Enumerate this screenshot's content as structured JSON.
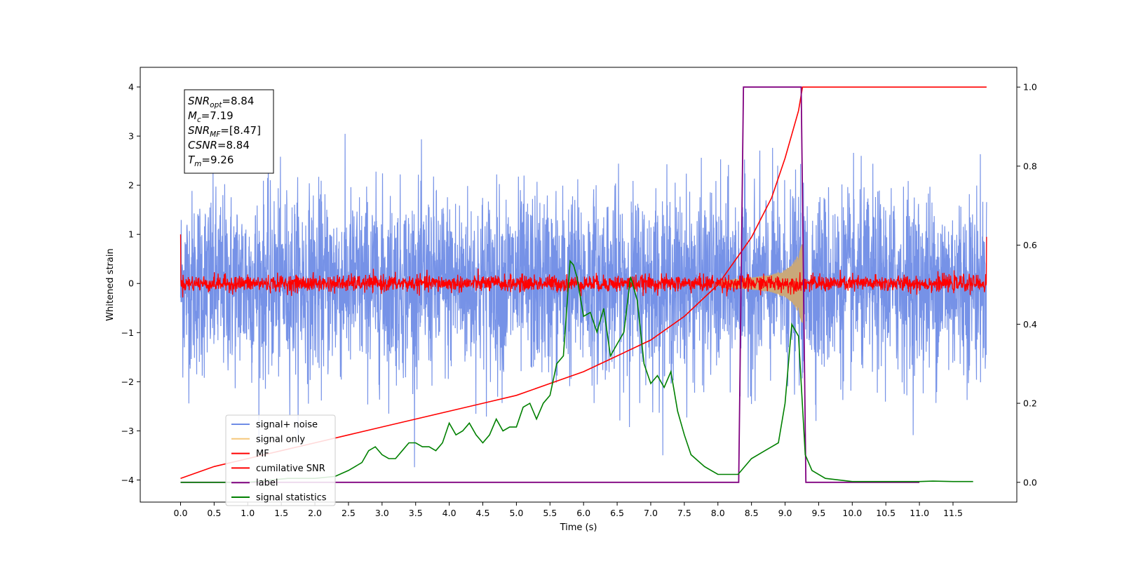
{
  "chart_data": {
    "type": "line",
    "xlabel": "Time (s)",
    "ylabel": "Whitened strain",
    "xlim": [
      -0.6,
      12.45
    ],
    "ylim_left": [
      -4.45,
      4.4
    ],
    "ylim_right": [
      -0.05,
      1.05
    ],
    "x_ticks": [
      "0.0",
      "0.5",
      "1.0",
      "1.5",
      "2.0",
      "2.5",
      "3.0",
      "3.5",
      "4.0",
      "4.5",
      "5.0",
      "5.5",
      "6.0",
      "6.5",
      "7.0",
      "7.5",
      "8.0",
      "8.5",
      "9.0",
      "9.5",
      "10.0",
      "10.5",
      "11.0",
      "11.5"
    ],
    "y_ticks_left": [
      "4",
      "3",
      "2",
      "1",
      "0",
      "−1",
      "−2",
      "−3",
      "−4"
    ],
    "y_ticks_right": [
      "1.0",
      "0.8",
      "0.6",
      "0.4",
      "0.2",
      "0.0"
    ],
    "annotation": [
      {
        "main": "SNR",
        "sub": "opt",
        "rest": "=8.84"
      },
      {
        "main": "M",
        "sub": "c",
        "rest": "=7.19"
      },
      {
        "main": "SNR",
        "sub": "MF",
        "rest": "=[8.47]"
      },
      {
        "main": "CSNR",
        "sub": "",
        "rest": "=8.84"
      },
      {
        "main": "T",
        "sub": "m",
        "rest": "=9.26"
      }
    ],
    "legend": [
      {
        "label": "signal+ noise",
        "color": "#6f8ce6"
      },
      {
        "label": "signal only",
        "color": "#f5c77a"
      },
      {
        "label": "MF",
        "color": "#ff0000"
      },
      {
        "label": "cumilative SNR",
        "color": "#ff0000"
      },
      {
        "label": "label",
        "color": "#800080"
      },
      {
        "label": "signal statistics",
        "color": "#008000"
      }
    ],
    "legend_position": "lower-left",
    "series": [
      {
        "name": "signal+ noise",
        "axis": "left",
        "description": "whitened noisy strain, amplitude ~ ±2 to ±4",
        "x_range": [
          0.0,
          12.0
        ],
        "typical_amplitude": 1.5,
        "max": 3.97,
        "min": -4.1
      },
      {
        "name": "signal only",
        "axis": "left",
        "description": "chirp growing toward merger",
        "x": [
          8.0,
          8.5,
          8.8,
          9.0,
          9.1,
          9.2,
          9.26
        ],
        "y_amplitude": [
          0.05,
          0.12,
          0.18,
          0.28,
          0.38,
          0.6,
          0.85
        ]
      },
      {
        "name": "MF",
        "axis": "left",
        "description": "matched filter output, noisy around 0 with amplitude ~0.15",
        "x_range": [
          0.0,
          12.0
        ],
        "typical_amplitude": 0.12,
        "edge_values": [
          1.0,
          0.95
        ]
      },
      {
        "name": "cumilative SNR",
        "axis": "right",
        "x": [
          0.0,
          0.5,
          1.0,
          1.5,
          2.0,
          2.5,
          3.0,
          3.5,
          4.0,
          4.5,
          5.0,
          5.5,
          6.0,
          6.5,
          7.0,
          7.5,
          8.0,
          8.5,
          8.8,
          9.0,
          9.1,
          9.2,
          9.26,
          12.0
        ],
        "values": [
          0.01,
          0.04,
          0.06,
          0.08,
          0.1,
          0.12,
          0.14,
          0.16,
          0.18,
          0.2,
          0.22,
          0.25,
          0.28,
          0.32,
          0.36,
          0.42,
          0.5,
          0.62,
          0.72,
          0.82,
          0.88,
          0.94,
          1.0,
          1.0
        ]
      },
      {
        "name": "label",
        "axis": "right",
        "x": [
          0.0,
          8.31,
          8.38,
          9.24,
          9.31,
          11.0
        ],
        "values": [
          0.0,
          0.0,
          1.0,
          1.0,
          0.0,
          0.0
        ]
      },
      {
        "name": "signal statistics",
        "axis": "right",
        "x": [
          0.0,
          1.0,
          1.6,
          2.0,
          2.3,
          2.5,
          2.7,
          2.8,
          2.9,
          3.0,
          3.1,
          3.2,
          3.3,
          3.4,
          3.5,
          3.6,
          3.7,
          3.8,
          3.9,
          4.0,
          4.1,
          4.2,
          4.3,
          4.4,
          4.5,
          4.6,
          4.7,
          4.8,
          4.9,
          5.0,
          5.1,
          5.2,
          5.3,
          5.4,
          5.5,
          5.6,
          5.7,
          5.8,
          5.85,
          5.9,
          6.0,
          6.1,
          6.2,
          6.3,
          6.4,
          6.5,
          6.6,
          6.7,
          6.8,
          6.9,
          7.0,
          7.1,
          7.2,
          7.3,
          7.4,
          7.5,
          7.6,
          7.8,
          8.0,
          8.3,
          8.5,
          8.7,
          8.9,
          9.0,
          9.1,
          9.2,
          9.3,
          9.4,
          9.6,
          10.0,
          11.0,
          11.2,
          11.5,
          11.8
        ],
        "values": [
          0.0,
          0.0,
          0.01,
          0.01,
          0.015,
          0.03,
          0.05,
          0.08,
          0.09,
          0.07,
          0.06,
          0.06,
          0.08,
          0.1,
          0.1,
          0.09,
          0.09,
          0.08,
          0.1,
          0.15,
          0.12,
          0.13,
          0.15,
          0.12,
          0.1,
          0.12,
          0.16,
          0.13,
          0.14,
          0.14,
          0.19,
          0.2,
          0.16,
          0.2,
          0.22,
          0.3,
          0.32,
          0.56,
          0.55,
          0.52,
          0.42,
          0.43,
          0.38,
          0.44,
          0.32,
          0.35,
          0.38,
          0.52,
          0.46,
          0.3,
          0.25,
          0.27,
          0.24,
          0.28,
          0.18,
          0.12,
          0.07,
          0.04,
          0.02,
          0.02,
          0.06,
          0.08,
          0.1,
          0.2,
          0.4,
          0.37,
          0.07,
          0.03,
          0.01,
          0.002,
          0.002,
          0.003,
          0.002,
          0.002
        ]
      }
    ]
  }
}
